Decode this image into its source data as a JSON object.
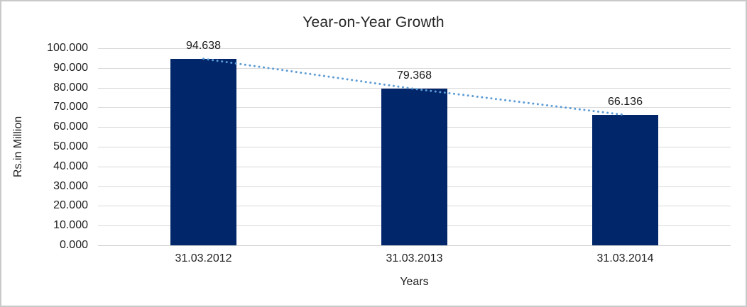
{
  "chart_data": {
    "type": "bar",
    "title": "Year-on-Year Growth",
    "xlabel": "Years",
    "ylabel": "Rs.in Million",
    "categories": [
      "31.03.2012",
      "31.03.2013",
      "31.03.2014"
    ],
    "values": [
      94.638,
      79.368,
      66.136
    ],
    "data_labels": [
      "94.638",
      "79.368",
      "66.136"
    ],
    "ytick_labels": [
      "0.000",
      "10.000",
      "20.000",
      "30.000",
      "40.000",
      "50.000",
      "60.000",
      "70.000",
      "80.000",
      "90.000",
      "100.000"
    ],
    "ylim": [
      0,
      100
    ],
    "ytick_step": 10,
    "grid": "horizontal",
    "legend": "none",
    "trendline": {
      "style": "dotted",
      "through": "bar-tops",
      "color": "#5B9BD5"
    },
    "colors": {
      "bar": "#02266A",
      "gridline": "#D9D9D9",
      "text": "#1F1F1F",
      "frame_border": "#C9C9C9",
      "background": "#FFFFFF"
    }
  }
}
